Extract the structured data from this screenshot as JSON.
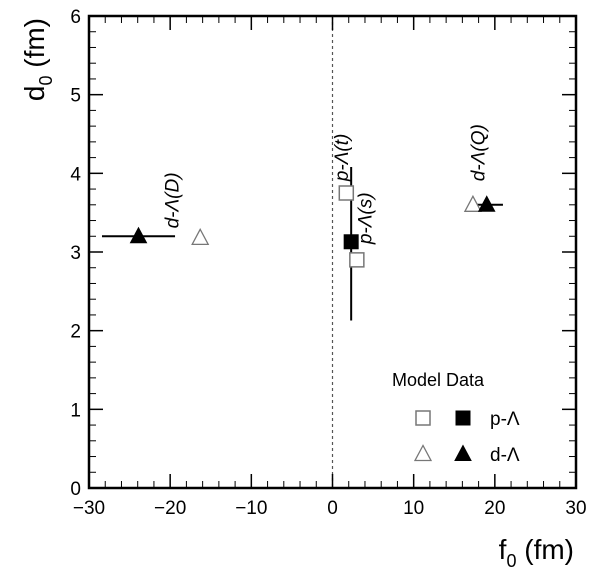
{
  "chart_data": {
    "type": "scatter",
    "xlabel": {
      "main": "f",
      "sub": "0",
      "unit": " (fm)"
    },
    "ylabel": {
      "main": "d",
      "sub": "0",
      "unit": " (fm)"
    },
    "xlim": [
      -30,
      30
    ],
    "ylim": [
      0,
      6
    ],
    "x_ticks": [
      -30,
      -20,
      -10,
      0,
      10,
      20,
      30
    ],
    "x_tick_labels": [
      "−30",
      "−20",
      "−10",
      "0",
      "10",
      "20",
      "30"
    ],
    "y_ticks": [
      0,
      1,
      2,
      3,
      4,
      5,
      6
    ],
    "y_tick_labels": [
      "0",
      "1",
      "2",
      "3",
      "4",
      "5",
      "6"
    ],
    "reference_line": {
      "x": 0,
      "style": "dashed"
    },
    "grid": false,
    "points": [
      {
        "x": 1.7,
        "y": 3.75,
        "marker": "open-square"
      },
      {
        "x": 3.0,
        "y": 2.9,
        "marker": "open-square"
      },
      {
        "x": 2.3,
        "y": 3.13,
        "marker": "filled-square",
        "x_err": 0.0,
        "y_err_low": 1.0,
        "y_err_high": 0.95
      },
      {
        "x": -16.3,
        "y": 3.18,
        "marker": "open-triangle"
      },
      {
        "x": -23.9,
        "y": 3.2,
        "marker": "filled-triangle",
        "x_err_low": 4.5,
        "x_err_high": 4.5
      },
      {
        "x": 17.3,
        "y": 3.6,
        "marker": "open-triangle"
      },
      {
        "x": 19.0,
        "y": 3.6,
        "marker": "filled-triangle",
        "x_err_low": 2.0,
        "x_err_high": 2.0
      }
    ],
    "annotations": [
      {
        "text": "d-Λ(D)",
        "x": -19.0,
        "y": 3.3
      },
      {
        "text": "p-Λ(t)",
        "x": 1.9,
        "y": 3.9
      },
      {
        "text": "p-Λ(s)",
        "x": 4.8,
        "y": 3.1
      },
      {
        "text": "d-Λ(Q)",
        "x": 18.7,
        "y": 3.9
      }
    ],
    "legend": {
      "placement": "bottom-right",
      "title": "Model Data",
      "entries": [
        {
          "label": "p-Λ",
          "model_marker": "open-square",
          "data_marker": "filled-square"
        },
        {
          "label": "d-Λ",
          "model_marker": "open-triangle",
          "data_marker": "filled-triangle"
        }
      ]
    }
  }
}
